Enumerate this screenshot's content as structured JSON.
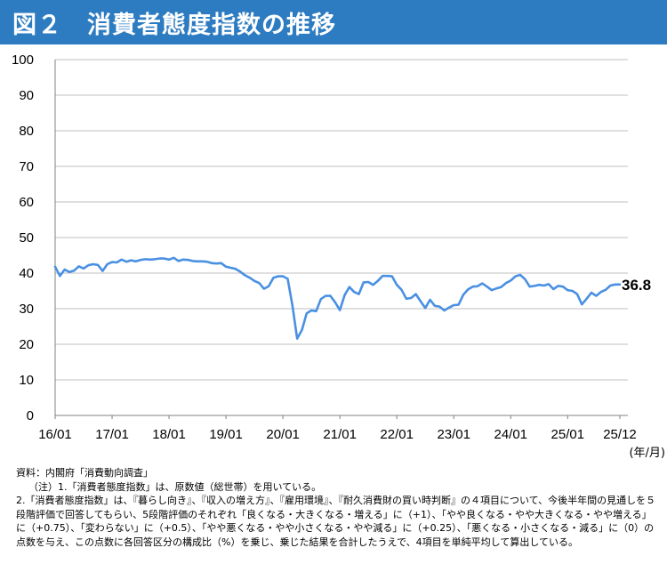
{
  "title": "図２　消費者態度指数の推移",
  "chart_data": {
    "type": "line",
    "x_start": "2016-01",
    "x_end": "2025-12",
    "xticks": [
      "16/01",
      "17/01",
      "18/01",
      "19/01",
      "20/01",
      "21/01",
      "22/01",
      "23/01",
      "24/01",
      "25/01",
      "25/12"
    ],
    "yticks": [
      0,
      10,
      20,
      30,
      40,
      50,
      60,
      70,
      80,
      90,
      100
    ],
    "ylim": [
      0,
      100
    ],
    "xunit": "(年/月)",
    "line_color": "#4a90e2",
    "end_label": "36.8",
    "series": [
      {
        "values": [
          41.8,
          39.2,
          41.0,
          40.3,
          40.7,
          41.9,
          41.3,
          42.2,
          42.5,
          42.3,
          40.6,
          42.5,
          43.1,
          43.0,
          43.8,
          43.2,
          43.6,
          43.3,
          43.7,
          43.9,
          43.8,
          43.9,
          44.1,
          44.1,
          43.8,
          44.3,
          43.4,
          43.8,
          43.7,
          43.4,
          43.3,
          43.3,
          43.2,
          42.8,
          42.7,
          42.8,
          41.8,
          41.5,
          41.2,
          40.4,
          39.4,
          38.7,
          37.8,
          37.2,
          35.6,
          36.3,
          38.7,
          39.1,
          39.1,
          38.4,
          30.9,
          21.6,
          24.0,
          28.7,
          29.5,
          29.3,
          32.7,
          33.6,
          33.6,
          31.8,
          29.6,
          33.8,
          36.1,
          34.7,
          34.1,
          37.4,
          37.5,
          36.7,
          37.8,
          39.2,
          39.2,
          39.1,
          36.7,
          35.3,
          32.8,
          33.0,
          34.1,
          32.1,
          30.2,
          32.5,
          30.8,
          30.6,
          29.5,
          30.3,
          31.0,
          31.1,
          33.9,
          35.4,
          36.2,
          36.3,
          37.1,
          36.2,
          35.2,
          35.7,
          36.1,
          37.2,
          37.9,
          39.1,
          39.5,
          38.3,
          36.2,
          36.4,
          36.7,
          36.5,
          36.9,
          35.5,
          36.4,
          36.2,
          35.2,
          35.0,
          34.1,
          31.2,
          32.8,
          34.5,
          33.6,
          34.7,
          35.3,
          36.5,
          36.8,
          36.8
        ]
      }
    ]
  },
  "notes": {
    "source": "資料：内閣府「消費動向調査」",
    "note_head": "（注）1.「消費者態度指数」は、原数値（総世帯）を用いている。",
    "note2": "2.「消費者態度指数」は、『暮らし向き』、『収入の増え方』、『雇用環境』、『耐久消費財の買い時判断』の４項目について、今後半年間の見通しを５段階評価で回答してもらい、5段階評価のそれぞれ「良くなる・大きくなる・増える」に（+1）、「やや良くなる・やや大きくなる・やや増える」に（+0.75）、「変わらない」に（+0.5）、「やや悪くなる・やや小さくなる・やや減る」に（+0.25）、「悪くなる・小さくなる・減る」に（0）の点数を与え、この点数に各回答区分の構成比（%）を乗じ、乗じた結果を合計したうえで、4項目を単純平均して算出している。"
  }
}
